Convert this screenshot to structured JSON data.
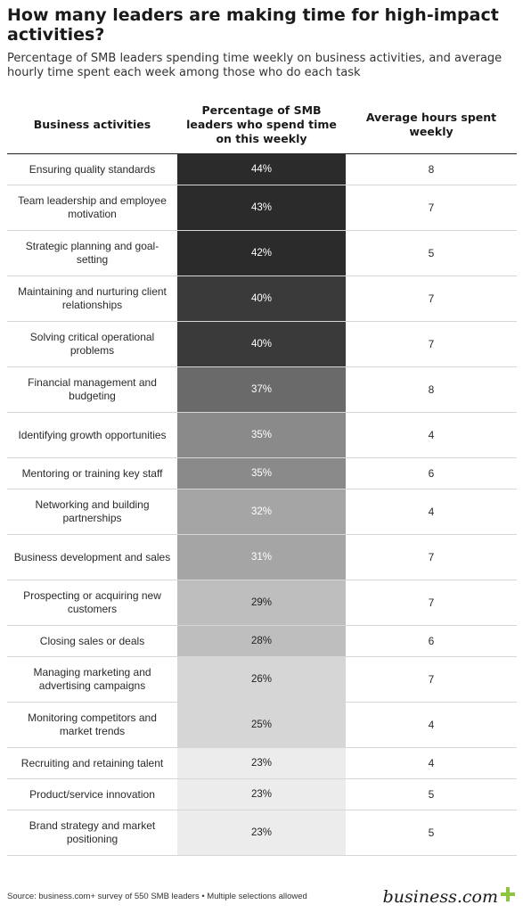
{
  "title": "How many leaders are making time for high-impact activities?",
  "subtitle": "Percentage of SMB leaders spending time weekly on business activities, and average hourly time spent each week among those who do each task",
  "columns": {
    "activity": "Business activities",
    "percentage": "Percentage of SMB leaders who spend time on this weekly",
    "hours": "Average hours spent weekly"
  },
  "source": "Source: business.com+ survey of 550 SMB leaders • Multiple selections allowed",
  "logo": {
    "text": "business.com",
    "icon": "plus-icon",
    "accent_color": "#8cc63f"
  },
  "chart_data": {
    "type": "table",
    "title": "How many leaders are making time for high-impact activities?",
    "columns": [
      "Business activities",
      "Percentage of SMB leaders who spend time on this weekly",
      "Average hours spent weekly"
    ],
    "rows": [
      {
        "activity": "Ensuring quality standards",
        "pct": 44,
        "hours": 8
      },
      {
        "activity": "Team leadership and employee motivation",
        "pct": 43,
        "hours": 7
      },
      {
        "activity": "Strategic planning and goal-setting",
        "pct": 42,
        "hours": 5
      },
      {
        "activity": "Maintaining and nurturing client relationships",
        "pct": 40,
        "hours": 7
      },
      {
        "activity": "Solving critical operational problems",
        "pct": 40,
        "hours": 7
      },
      {
        "activity": "Financial management and budgeting",
        "pct": 37,
        "hours": 8
      },
      {
        "activity": "Identifying growth opportunities",
        "pct": 35,
        "hours": 4
      },
      {
        "activity": "Mentoring or training key staff",
        "pct": 35,
        "hours": 6
      },
      {
        "activity": "Networking and building partnerships",
        "pct": 32,
        "hours": 4
      },
      {
        "activity": "Business development and sales",
        "pct": 31,
        "hours": 7
      },
      {
        "activity": "Prospecting or acquiring new customers",
        "pct": 29,
        "hours": 7
      },
      {
        "activity": "Closing sales or deals",
        "pct": 28,
        "hours": 6
      },
      {
        "activity": "Managing marketing and advertising campaigns",
        "pct": 26,
        "hours": 7
      },
      {
        "activity": "Monitoring competitors and market trends",
        "pct": 25,
        "hours": 4
      },
      {
        "activity": "Recruiting and retaining talent",
        "pct": 23,
        "hours": 4
      },
      {
        "activity": "Product/service innovation",
        "pct": 23,
        "hours": 5
      },
      {
        "activity": "Brand strategy and market positioning",
        "pct": 23,
        "hours": 5
      }
    ],
    "heat_colors": [
      "#2b2b2b",
      "#3a3a3a",
      "#6a6a6a",
      "#8a8a8a",
      "#a5a5a5",
      "#bebebe",
      "#d6d6d6",
      "#ececec"
    ]
  }
}
